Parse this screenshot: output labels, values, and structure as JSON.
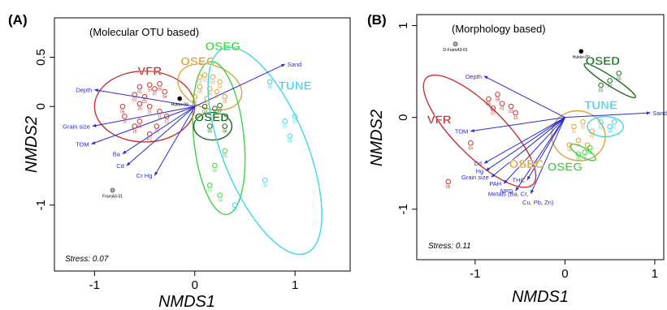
{
  "chart_data": [
    {
      "type": "scatter",
      "panel": "(A)",
      "subtitle": "(Molecular OTU based)",
      "xlabel": "NMDS1",
      "ylabel": "NMDS2",
      "xlim": [
        -1.4,
        1.55
      ],
      "ylim": [
        -1.67,
        0.9
      ],
      "xticks": [
        -1,
        0,
        1
      ],
      "yticks": [
        -1,
        0,
        0.5
      ],
      "ytick_labels": [
        "-1",
        "0",
        "0.5"
      ],
      "stress": "Stress: 0.07",
      "colors": {
        "VFR": "#c83232",
        "OSEC": "#d8a23a",
        "OSEG": "#3ed23e",
        "OSED": "#1f6b1f",
        "TUNE": "#3ad8e8",
        "vector": "#2a2ad0"
      },
      "groups": [
        {
          "name": "VFR",
          "color": "#c83232",
          "label_pos": [
            -0.45,
            0.32
          ],
          "ellipse": {
            "cx": -0.5,
            "cy": 0.0,
            "rx": 0.5,
            "ry": 0.36,
            "angle": 0
          },
          "points": [
            [
              -0.55,
              0.2,
              "01"
            ],
            [
              -0.45,
              0.22,
              "10"
            ],
            [
              -0.35,
              0.23,
              "09"
            ],
            [
              -0.6,
              0.12,
              "02"
            ],
            [
              -0.5,
              0.1,
              "03"
            ],
            [
              -0.4,
              0.18,
              "07"
            ],
            [
              -0.3,
              0.15,
              "04"
            ],
            [
              -0.72,
              -0.0,
              "06"
            ],
            [
              -0.55,
              0.03,
              "20"
            ],
            [
              -0.45,
              0.0,
              "21"
            ],
            [
              -0.35,
              -0.05,
              "11"
            ],
            [
              -0.28,
              -0.1,
              "12"
            ],
            [
              -0.55,
              -0.15,
              "05"
            ],
            [
              -0.6,
              -0.2,
              "18"
            ],
            [
              -0.45,
              -0.28,
              "K1"
            ],
            [
              -0.7,
              -0.1,
              "15"
            ],
            [
              -0.38,
              -0.2,
              "16"
            ]
          ]
        },
        {
          "name": "OSEC",
          "color": "#d8a23a",
          "label_pos": [
            0.03,
            0.42
          ],
          "ellipse": {
            "cx": 0.15,
            "cy": 0.2,
            "rx": 0.33,
            "ry": 0.22,
            "angle": -20
          },
          "points": [
            [
              0.05,
              0.3,
              "01"
            ],
            [
              0.1,
              0.32,
              "02"
            ],
            [
              0.18,
              0.3,
              "03"
            ],
            [
              0.25,
              0.25,
              "04"
            ],
            [
              0.05,
              0.2,
              "05"
            ],
            [
              0.15,
              0.18,
              "06"
            ],
            [
              0.22,
              0.15,
              "07"
            ],
            [
              0.3,
              0.1,
              "08"
            ],
            [
              0.0,
              0.1,
              "09"
            ],
            [
              0.12,
              0.08,
              "10"
            ]
          ]
        },
        {
          "name": "OSEG",
          "color": "#3ed23e",
          "label_pos": [
            0.28,
            0.57
          ],
          "ellipse": {
            "cx": 0.24,
            "cy": -0.32,
            "rx": 0.25,
            "ry": 0.78,
            "angle": 6
          },
          "points": [
            [
              0.2,
              -0.6,
              "16"
            ],
            [
              0.15,
              -0.8,
              "13"
            ],
            [
              0.25,
              -0.9,
              "14"
            ],
            [
              0.3,
              -0.45,
              "15"
            ]
          ]
        },
        {
          "name": "OSED",
          "color": "#1f6b1f",
          "label_pos": [
            0.17,
            -0.15
          ],
          "ellipse": {
            "cx": 0.18,
            "cy": -0.2,
            "rx": 0.19,
            "ry": 0.14,
            "angle": 0
          },
          "points": [
            [
              0.1,
              0.0,
              "03"
            ],
            [
              0.2,
              -0.02,
              "01"
            ],
            [
              0.25,
              0.01,
              "02"
            ],
            [
              0.15,
              -0.2,
              "05"
            ],
            [
              0.3,
              -0.2,
              "06"
            ]
          ]
        },
        {
          "name": "TUNE",
          "color": "#3ad8e8",
          "label_pos": [
            1.0,
            0.17
          ],
          "ellipse": {
            "cx": 0.7,
            "cy": -0.45,
            "rx": 0.42,
            "ry": 1.12,
            "angle": 22
          },
          "points": [
            [
              0.75,
              0.25,
              "05"
            ],
            [
              0.9,
              -0.15,
              "01"
            ],
            [
              1.0,
              -0.1,
              "03"
            ],
            [
              0.95,
              -0.3,
              "04"
            ],
            [
              0.7,
              -0.75,
              "08"
            ],
            [
              0.4,
              -1.0,
              "09"
            ]
          ]
        }
      ],
      "reference_points": [
        {
          "label": "Hukks-09",
          "x": -0.15,
          "y": 0.08,
          "fill": "#000000"
        },
        {
          "label": "FramA3-01",
          "x": -0.82,
          "y": -0.85,
          "fill": "#aaaaaa"
        }
      ],
      "vectors": [
        {
          "label": "Sand",
          "x": 0.9,
          "y": 0.43
        },
        {
          "label": "Depth",
          "x": -1.0,
          "y": 0.17
        },
        {
          "label": "Grain size",
          "x": -1.02,
          "y": -0.2
        },
        {
          "label": "TOM",
          "x": -1.03,
          "y": -0.38
        },
        {
          "label": "Ba",
          "x": -0.72,
          "y": -0.48
        },
        {
          "label": "Cd",
          "x": -0.68,
          "y": -0.6
        },
        {
          "label": "Cr Hg",
          "x": -0.4,
          "y": -0.7
        }
      ]
    },
    {
      "type": "scatter",
      "panel": "(B)",
      "subtitle": "(Morphology based)",
      "xlabel": "NMDS1",
      "ylabel": "NMDS2",
      "xlim": [
        -1.65,
        1.1
      ],
      "ylim": [
        -1.55,
        1.12
      ],
      "xticks": [
        -1,
        0,
        1
      ],
      "yticks": [
        -1,
        0,
        1
      ],
      "ytick_labels": [
        "-1",
        "0",
        "1"
      ],
      "stress": "Stress: 0.11",
      "colors": {
        "VFR": "#c83232",
        "OSEC": "#d8a23a",
        "OSEG": "#3ed23e",
        "OSED": "#1f6b1f",
        "TUNE": "#3ad8e8",
        "vector": "#2a2ad0"
      },
      "groups": [
        {
          "name": "VFR",
          "color": "#c83232",
          "label_pos": [
            -1.4,
            -0.07
          ],
          "ellipse": {
            "cx": -0.95,
            "cy": -0.15,
            "rx": 0.28,
            "ry": 0.82,
            "angle": 45
          },
          "points": [
            [
              -0.85,
              0.2,
              "06"
            ],
            [
              -0.75,
              0.25,
              "08"
            ],
            [
              -0.7,
              0.15,
              "01"
            ],
            [
              -0.6,
              0.12,
              "02"
            ],
            [
              -0.55,
              0.05,
              "10"
            ],
            [
              -0.8,
              0.1,
              "07"
            ],
            [
              -1.05,
              -0.28,
              "04"
            ],
            [
              -1.3,
              -0.7,
              "05"
            ]
          ]
        },
        {
          "name": "OSEC",
          "color": "#d8a23a",
          "label_pos": [
            -0.43,
            -0.55
          ],
          "ellipse": {
            "cx": 0.15,
            "cy": -0.2,
            "rx": 0.3,
            "ry": 0.27,
            "angle": -15
          },
          "points": [
            [
              0.1,
              -0.1,
              "01"
            ],
            [
              0.2,
              -0.05,
              "02"
            ],
            [
              0.3,
              -0.15,
              "03"
            ],
            [
              0.15,
              -0.25,
              "04"
            ],
            [
              0.25,
              -0.3,
              "05"
            ],
            [
              0.05,
              -0.3,
              "06"
            ]
          ]
        },
        {
          "name": "OSEG",
          "color": "#3ed23e",
          "label_pos": [
            0.0,
            -0.58
          ],
          "ellipse": {
            "cx": 0.2,
            "cy": -0.38,
            "rx": 0.16,
            "ry": 0.05,
            "angle": -30
          },
          "points": [
            [
              0.15,
              -0.4,
              "06"
            ],
            [
              0.22,
              -0.38,
              "07"
            ],
            [
              0.28,
              -0.33,
              "08"
            ]
          ]
        },
        {
          "name": "OSED",
          "color": "#1f6b1f",
          "label_pos": [
            0.42,
            0.57
          ],
          "ellipse": {
            "cx": 0.5,
            "cy": 0.4,
            "rx": 0.34,
            "ry": 0.05,
            "angle": -33
          },
          "points": [
            [
              0.4,
              0.35,
              "01"
            ],
            [
              0.5,
              0.4,
              "02"
            ],
            [
              0.6,
              0.48,
              "03"
            ]
          ]
        },
        {
          "name": "TUNE",
          "color": "#3ad8e8",
          "label_pos": [
            0.4,
            0.09
          ],
          "ellipse": {
            "cx": 0.45,
            "cy": -0.1,
            "rx": 0.2,
            "ry": 0.11,
            "angle": 0
          },
          "points": [
            [
              0.4,
              -0.05,
              "03"
            ],
            [
              0.5,
              -0.1,
              "04"
            ],
            [
              0.55,
              -0.05,
              "01"
            ]
          ]
        }
      ],
      "reference_points": [
        {
          "label": "Hukks-09",
          "x": 0.18,
          "y": 0.72,
          "fill": "#000000"
        },
        {
          "label": "D-FramA3-01",
          "x": -1.22,
          "y": 0.8,
          "fill": "#aaaaaa"
        }
      ],
      "vectors": [
        {
          "label": "Sand",
          "x": 0.95,
          "y": 0.05
        },
        {
          "label": "Depth",
          "x": -0.9,
          "y": 0.45
        },
        {
          "label": "TOM",
          "x": -1.05,
          "y": -0.15
        },
        {
          "label": "Cd",
          "x": -0.9,
          "y": -0.5
        },
        {
          "label": "Hg",
          "x": -0.88,
          "y": -0.58
        },
        {
          "label": "Grain size",
          "x": -0.82,
          "y": -0.65
        },
        {
          "label": "PAH",
          "x": -0.68,
          "y": -0.72
        },
        {
          "label": "NPD",
          "x": -0.55,
          "y": -0.8
        },
        {
          "label": "THC",
          "x": -0.42,
          "y": -0.68
        },
        {
          "label": "Metals (Ba, Cr,",
          "x": -0.38,
          "y": -0.83
        }
      ],
      "vector_label_extra": [
        {
          "text": "Cu, Pb, Zn)",
          "x": -0.3,
          "y": -0.95
        }
      ]
    }
  ]
}
